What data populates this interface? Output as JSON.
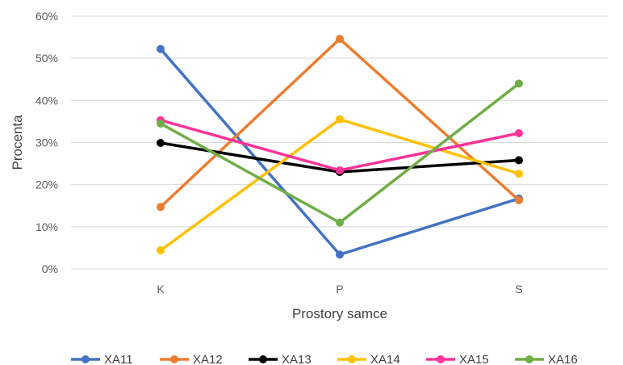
{
  "chart_data": {
    "type": "line",
    "categories": [
      "K",
      "P",
      "S"
    ],
    "xlabel": "Prostory samce",
    "ylabel": "Procenta",
    "ylim": [
      0,
      60
    ],
    "yticks": [
      "0%",
      "10%",
      "20%",
      "30%",
      "40%",
      "50%",
      "60%"
    ],
    "grid": true,
    "legend_position": "bottom",
    "series": [
      {
        "name": "XA11",
        "color": "#4472C4",
        "values": [
          52.2,
          3.4,
          16.7
        ]
      },
      {
        "name": "XA12",
        "color": "#ED7D31",
        "values": [
          14.7,
          54.6,
          16.3
        ]
      },
      {
        "name": "XA13",
        "color": "#000000",
        "values": [
          29.9,
          23.0,
          25.8
        ]
      },
      {
        "name": "XA14",
        "color": "#FFC000",
        "values": [
          4.4,
          35.5,
          22.6
        ]
      },
      {
        "name": "XA15",
        "color": "#FF3399",
        "values": [
          35.3,
          23.4,
          32.2
        ]
      },
      {
        "name": "XA16",
        "color": "#70AD47",
        "values": [
          34.5,
          11.0,
          44.0
        ]
      }
    ]
  }
}
